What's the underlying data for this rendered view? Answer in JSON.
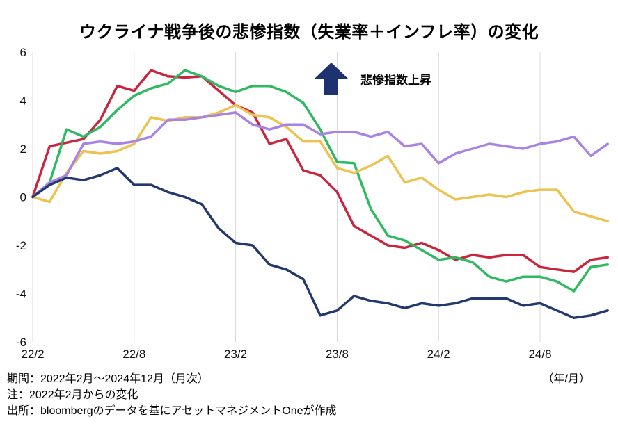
{
  "chart_data": {
    "type": "line",
    "title": "ウクライナ戦争後の悲惨指数（失業率＋インフレ率）の変化",
    "annotation": "悲惨指数上昇",
    "xlabel": "（年/月）",
    "ylabel": "",
    "ylim": [
      -6,
      6
    ],
    "y_ticks": [
      6,
      4,
      2,
      0,
      -2,
      -4,
      -6
    ],
    "grid": "vertical-only",
    "legend": "none",
    "x": [
      "22/2",
      "22/3",
      "22/4",
      "22/5",
      "22/6",
      "22/7",
      "22/8",
      "22/9",
      "22/10",
      "22/11",
      "22/12",
      "23/1",
      "23/2",
      "23/3",
      "23/4",
      "23/5",
      "23/6",
      "23/7",
      "23/8",
      "23/9",
      "23/10",
      "23/11",
      "23/12",
      "24/1",
      "24/2",
      "24/3",
      "24/4",
      "24/5",
      "24/6",
      "24/7",
      "24/8",
      "24/9",
      "24/10",
      "24/11",
      "24/12"
    ],
    "x_tick_labels": [
      "22/2",
      "22/8",
      "23/2",
      "23/8",
      "24/2",
      "24/8"
    ],
    "x_tick_indices": [
      0,
      6,
      12,
      18,
      24,
      30
    ],
    "series": [
      {
        "name": "red-line",
        "color": "#c9253d",
        "values": [
          0,
          2.1,
          2.25,
          2.4,
          3.2,
          4.6,
          4.4,
          5.25,
          5.0,
          4.95,
          5.0,
          4.4,
          3.8,
          3.5,
          2.2,
          2.4,
          1.1,
          0.9,
          0.2,
          -1.2,
          -1.6,
          -2.0,
          -2.1,
          -1.9,
          -2.2,
          -2.6,
          -2.4,
          -2.5,
          -2.4,
          -2.4,
          -2.9,
          -3.0,
          -3.1,
          -2.6,
          -2.5
        ]
      },
      {
        "name": "green-line",
        "color": "#2fba62",
        "values": [
          0,
          0.6,
          2.8,
          2.5,
          2.9,
          3.6,
          4.2,
          4.5,
          4.7,
          5.25,
          5.0,
          4.6,
          4.35,
          4.6,
          4.6,
          4.35,
          3.9,
          2.8,
          1.45,
          1.4,
          -0.5,
          -1.6,
          -1.8,
          -2.2,
          -2.6,
          -2.5,
          -2.7,
          -3.3,
          -3.5,
          -3.3,
          -3.3,
          -3.5,
          -3.9,
          -2.9,
          -2.8
        ]
      },
      {
        "name": "yellow-line",
        "color": "#eec24f",
        "values": [
          0,
          -0.2,
          1.0,
          1.9,
          1.8,
          1.9,
          2.2,
          3.3,
          3.15,
          3.3,
          3.3,
          3.5,
          3.8,
          3.4,
          3.3,
          2.9,
          2.3,
          2.3,
          1.2,
          1.0,
          1.3,
          1.7,
          0.6,
          0.8,
          0.3,
          -0.1,
          0.0,
          0.1,
          0.0,
          0.2,
          0.3,
          0.3,
          -0.6,
          -0.8,
          -1.0
        ]
      },
      {
        "name": "purple-line",
        "color": "#a982e8",
        "values": [
          0,
          0.6,
          0.9,
          2.2,
          2.3,
          2.2,
          2.3,
          2.5,
          3.2,
          3.2,
          3.3,
          3.4,
          3.5,
          3.0,
          2.8,
          3.0,
          3.0,
          2.6,
          2.7,
          2.7,
          2.5,
          2.7,
          2.1,
          2.2,
          1.4,
          1.8,
          2.0,
          2.2,
          2.1,
          2.0,
          2.2,
          2.3,
          2.5,
          1.7,
          2.2
        ]
      },
      {
        "name": "navy-line",
        "color": "#22386f",
        "values": [
          0,
          0.5,
          0.8,
          0.7,
          0.9,
          1.2,
          0.5,
          0.5,
          0.2,
          0.0,
          -0.3,
          -1.3,
          -1.9,
          -2.0,
          -2.8,
          -3.0,
          -3.4,
          -4.9,
          -4.7,
          -4.1,
          -4.3,
          -4.4,
          -4.6,
          -4.4,
          -4.5,
          -4.4,
          -4.2,
          -4.2,
          -4.2,
          -4.5,
          -4.4,
          -4.7,
          -5.0,
          -4.9,
          -4.7
        ]
      }
    ]
  },
  "annotation": {
    "arrow_color": "#1e3272",
    "label": "悲惨指数上昇"
  },
  "footer": {
    "period": "期間：2022年2月～2024年12月（月次）",
    "axis_unit": "（年/月）",
    "note": "注：2022年2月からの変化",
    "source": "出所：bloombergのデータを基にアセットマネジメントOneが作成"
  }
}
